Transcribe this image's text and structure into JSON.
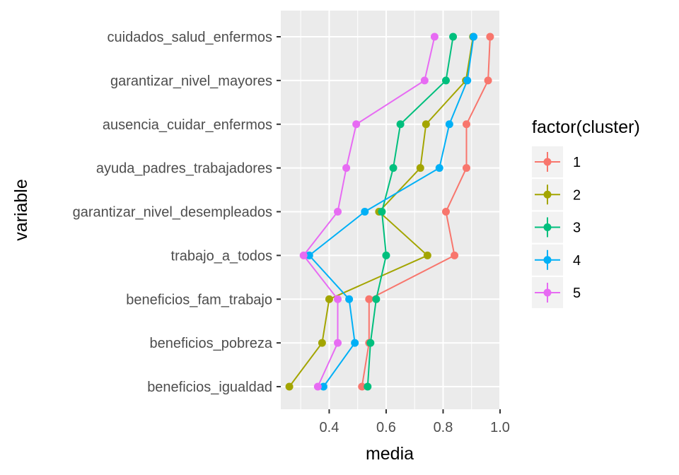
{
  "chart_data": {
    "type": "line",
    "xlabel": "media",
    "ylabel": "variable",
    "xlim": [
      0.23,
      1.0
    ],
    "x_ticks": [
      "0.4",
      "0.6",
      "0.8",
      "1.0"
    ],
    "x_tick_values": [
      0.4,
      0.6,
      0.8,
      1.0
    ],
    "grid": true,
    "legend_placement": "right",
    "legend_title": "factor(cluster)",
    "categories": [
      "cuidados_salud_enfermos",
      "garantizar_nivel_mayores",
      "ausencia_cuidar_enfermos",
      "ayuda_padres_trabajadores",
      "garantizar_nivel_desempleados",
      "trabajo_a_todos",
      "beneficios_fam_trabajo",
      "beneficios_pobreza",
      "beneficios_igualdad"
    ],
    "series": [
      {
        "name": "1",
        "color": "#F8766D",
        "values": [
          0.965,
          0.958,
          0.882,
          0.882,
          0.81,
          0.84,
          0.54,
          0.54,
          0.515
        ]
      },
      {
        "name": "2",
        "color": "#A3A500",
        "values": [
          0.905,
          0.88,
          0.74,
          0.72,
          0.575,
          0.745,
          0.4,
          0.375,
          0.26
        ]
      },
      {
        "name": "3",
        "color": "#00BF7D",
        "values": [
          0.835,
          0.81,
          0.65,
          0.625,
          0.585,
          0.6,
          0.565,
          0.545,
          0.535
        ]
      },
      {
        "name": "4",
        "color": "#00B0F6",
        "values": [
          0.907,
          0.885,
          0.822,
          0.787,
          0.525,
          0.33,
          0.47,
          0.49,
          0.38
        ]
      },
      {
        "name": "5",
        "color": "#E76BF3",
        "values": [
          0.77,
          0.735,
          0.495,
          0.46,
          0.43,
          0.31,
          0.43,
          0.43,
          0.36
        ]
      }
    ]
  }
}
